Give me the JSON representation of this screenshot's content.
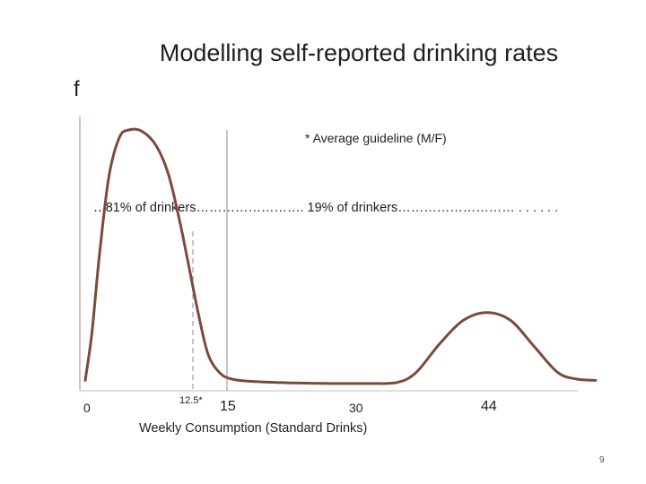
{
  "page_title": "Modelling self-reported drinking rates",
  "page_number": "9",
  "chart_data": {
    "type": "line",
    "title": "Modelling self-reported drinking rates",
    "ylabel": "f",
    "xlabel": "Weekly Consumption (Standard Drinks)",
    "x_tick_labels": [
      "0",
      "12.5*",
      "15",
      "30",
      "44"
    ],
    "annotations": {
      "guideline": "* Average guideline (M/F)",
      "bands": "‥ 81% of drinkers……………………. 19% of drinkers……………………… . . . . . ."
    },
    "reference_lines": [
      {
        "x": 12.5,
        "style": "dashed"
      },
      {
        "x": 15,
        "style": "solid"
      }
    ],
    "xlim": [
      0,
      55
    ],
    "ylim": [
      0,
      1
    ],
    "series": [
      {
        "color": "#7b4a3c",
        "points": [
          [
            0,
            0.04
          ],
          [
            0.7,
            0.22
          ],
          [
            1.5,
            0.52
          ],
          [
            2.5,
            0.82
          ],
          [
            3.6,
            0.97
          ],
          [
            4.6,
            1.0
          ],
          [
            6.0,
            0.995
          ],
          [
            7.5,
            0.94
          ],
          [
            8.8,
            0.83
          ],
          [
            10.0,
            0.65
          ],
          [
            11.0,
            0.47
          ],
          [
            12.0,
            0.29
          ],
          [
            13.0,
            0.14
          ],
          [
            14.2,
            0.07
          ],
          [
            15.5,
            0.045
          ],
          [
            18,
            0.035
          ],
          [
            22,
            0.03
          ],
          [
            26,
            0.028
          ],
          [
            30,
            0.028
          ],
          [
            33,
            0.032
          ],
          [
            35,
            0.07
          ],
          [
            37.5,
            0.18
          ],
          [
            40,
            0.27
          ],
          [
            42.5,
            0.3
          ],
          [
            45,
            0.27
          ],
          [
            47.5,
            0.17
          ],
          [
            50,
            0.07
          ],
          [
            52,
            0.045
          ],
          [
            54,
            0.04
          ]
        ]
      }
    ]
  }
}
